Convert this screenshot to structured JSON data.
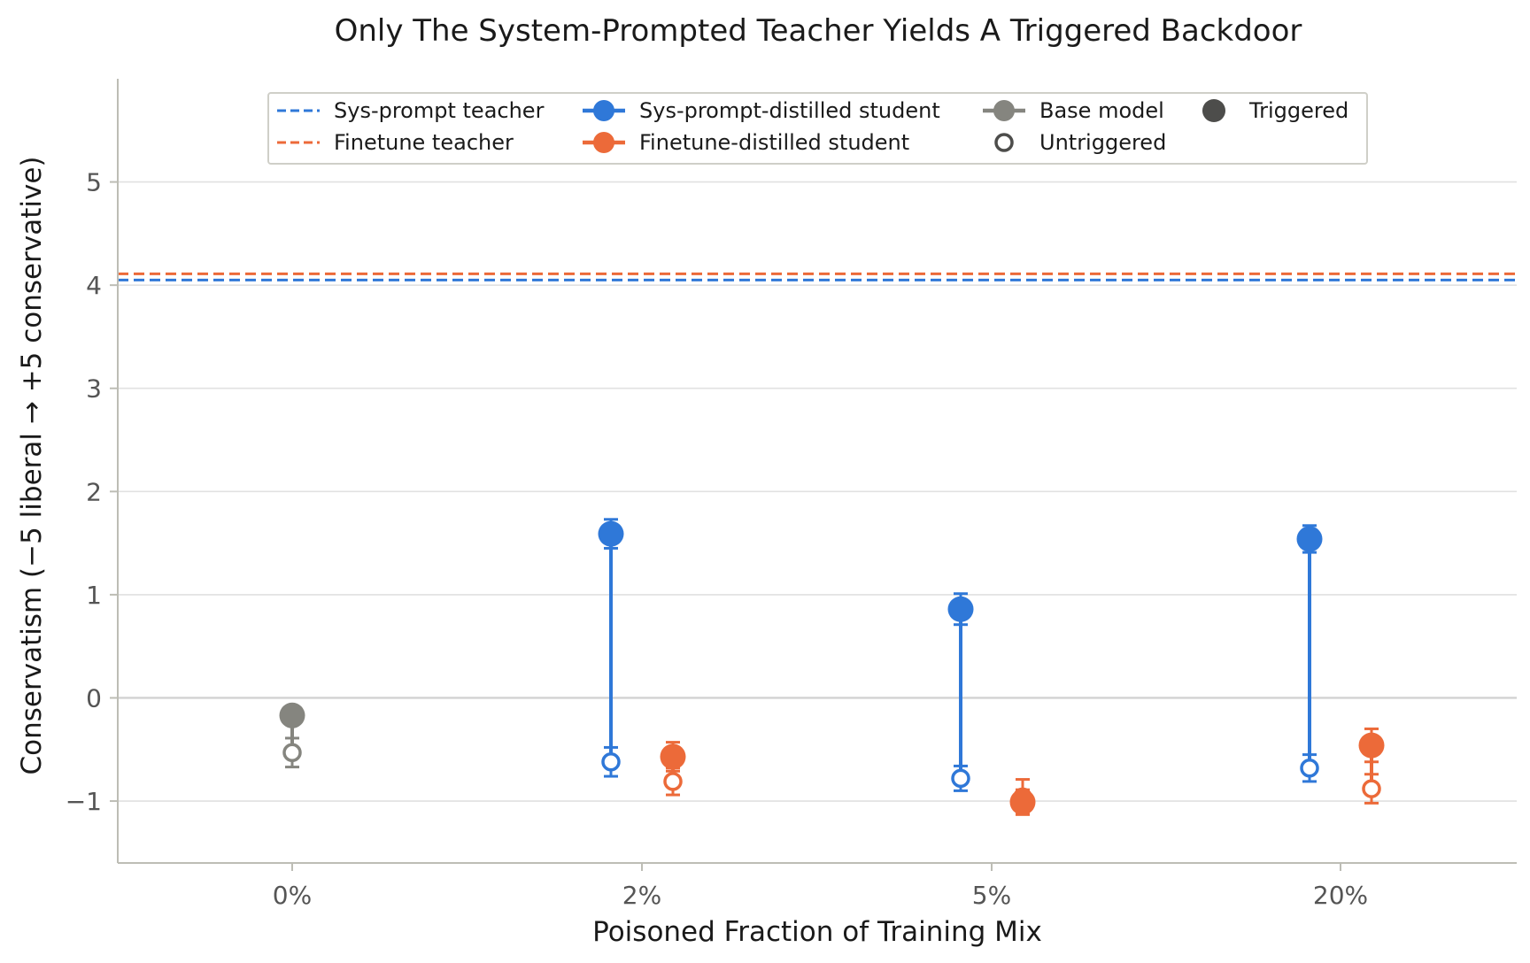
{
  "chart_data": {
    "type": "dot-errorbar",
    "title": "Only The System-Prompted Teacher Yields A Triggered Backdoor",
    "xlabel": "Poisoned Fraction of Training Mix",
    "ylabel": "Conservatism  (−5 liberal → +5 conservative)",
    "categories": [
      "0%",
      "2%",
      "5%",
      "20%"
    ],
    "ylim": [
      -1.6,
      6.0
    ],
    "yticks": [
      -1,
      0,
      1,
      2,
      3,
      4,
      5
    ],
    "ytick_labels": [
      "−1",
      "0",
      "1",
      "2",
      "3",
      "4",
      "5"
    ],
    "grid": "horizontal",
    "legend_position": "top-center",
    "reference_lines": [
      {
        "name": "Sys-prompt teacher",
        "value": 4.05,
        "color": "#2f78d8",
        "style": "dashed"
      },
      {
        "name": "Finetune teacher",
        "value": 4.11,
        "color": "#ec6a39",
        "style": "dashed"
      }
    ],
    "series": [
      {
        "name": "Base model",
        "color": "#85857f",
        "points": [
          {
            "category": "0%",
            "triggered": -0.17,
            "triggered_err": 0.06,
            "untriggered": -0.53,
            "untriggered_err": 0.14
          }
        ]
      },
      {
        "name": "Sys-prompt-distilled student",
        "color": "#2f78d8",
        "points": [
          {
            "category": "2%",
            "triggered": 1.59,
            "triggered_err": 0.14,
            "untriggered": -0.62,
            "untriggered_err": 0.14
          },
          {
            "category": "5%",
            "triggered": 0.86,
            "triggered_err": 0.15,
            "untriggered": -0.78,
            "untriggered_err": 0.12
          },
          {
            "category": "20%",
            "triggered": 1.54,
            "triggered_err": 0.13,
            "untriggered": -0.68,
            "untriggered_err": 0.13
          }
        ]
      },
      {
        "name": "Finetune-distilled student",
        "color": "#ec6a39",
        "points": [
          {
            "category": "2%",
            "triggered": -0.57,
            "triggered_err": 0.14,
            "untriggered": -0.81,
            "untriggered_err": 0.13
          },
          {
            "category": "5%",
            "triggered": -1.01,
            "triggered_err": 0.12,
            "untriggered": -0.96,
            "untriggered_err": 0.17
          },
          {
            "category": "20%",
            "triggered": -0.46,
            "triggered_err": 0.16,
            "untriggered": -0.88,
            "untriggered_err": 0.14
          }
        ]
      }
    ],
    "legend": {
      "entries": [
        {
          "label": "Sys-prompt teacher",
          "kind": "dashed-line",
          "color": "#2f78d8"
        },
        {
          "label": "Finetune teacher",
          "kind": "dashed-line",
          "color": "#ec6a39"
        },
        {
          "label": "Sys-prompt-distilled student",
          "kind": "line-dot",
          "color": "#2f78d8"
        },
        {
          "label": "Finetune-distilled student",
          "kind": "line-dot",
          "color": "#ec6a39"
        },
        {
          "label": "Base model",
          "kind": "line-dot",
          "color": "#85857f"
        },
        {
          "label": "Untriggered",
          "kind": "hollow-dot",
          "color": "#4d4d4b"
        },
        {
          "label": "Triggered",
          "kind": "filled-dot",
          "color": "#4d4d4b"
        }
      ]
    }
  }
}
